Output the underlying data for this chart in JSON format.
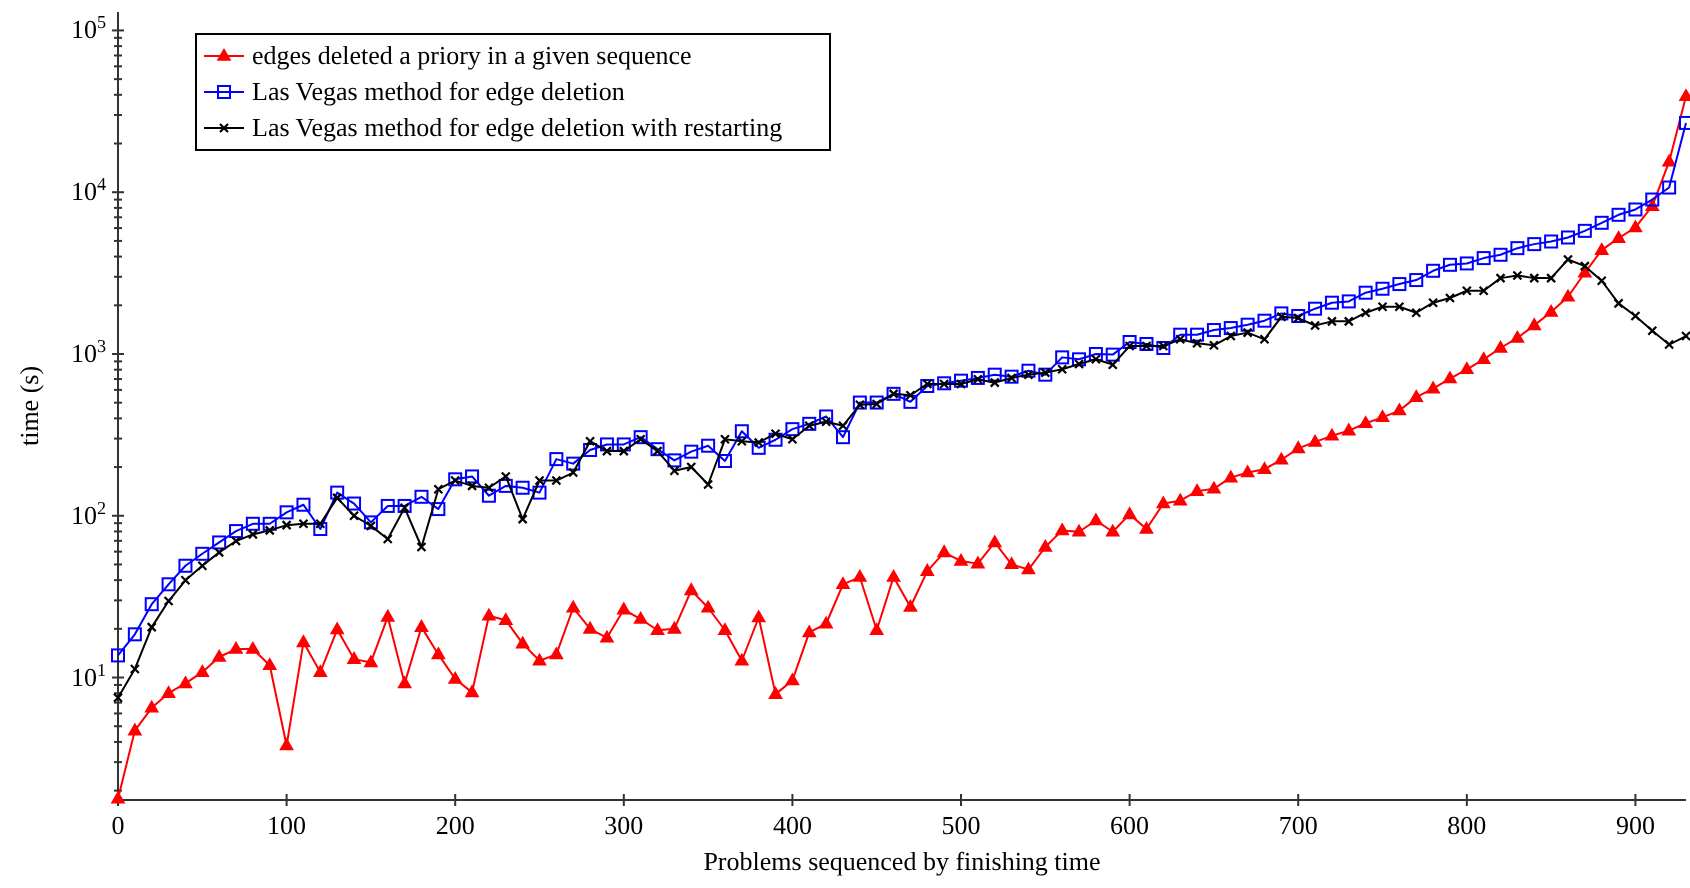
{
  "chart_data": {
    "type": "line",
    "xlabel": "Problems sequenced by finishing time",
    "ylabel": "time (s)",
    "log": "y",
    "grid": false,
    "legend": "top left",
    "xlim": [
      0,
      930
    ],
    "xticks": [
      0,
      100,
      200,
      300,
      400,
      500,
      600,
      700,
      800,
      900
    ],
    "ylim": [
      1.75,
      130000
    ],
    "yticks": [
      {
        "value": 10,
        "label": "10$^{1}$"
      },
      {
        "value": 100,
        "label": "10$^{2}$"
      },
      {
        "value": 1000,
        "label": "10$^{3}$"
      },
      {
        "value": 10000,
        "label": "10$^{4}$"
      },
      {
        "value": 100000,
        "label": "10$^{5}$"
      },
      {
        "value": 2,
        "label": null
      },
      {
        "value": 3,
        "label": null
      },
      {
        "value": 4,
        "label": null
      },
      {
        "value": 5,
        "label": null
      },
      {
        "value": 6,
        "label": null
      },
      {
        "value": 7,
        "label": null
      },
      {
        "value": 8,
        "label": null
      },
      {
        "value": 9,
        "label": null
      },
      {
        "value": 20,
        "label": null
      },
      {
        "value": 30,
        "label": null
      },
      {
        "value": 40,
        "label": null
      },
      {
        "value": 50,
        "label": null
      },
      {
        "value": 60,
        "label": null
      },
      {
        "value": 70,
        "label": null
      },
      {
        "value": 80,
        "label": null
      },
      {
        "value": 90,
        "label": null
      },
      {
        "value": 200,
        "label": null
      },
      {
        "value": 300,
        "label": null
      },
      {
        "value": 400,
        "label": null
      },
      {
        "value": 500,
        "label": null
      },
      {
        "value": 600,
        "label": null
      },
      {
        "value": 700,
        "label": null
      },
      {
        "value": 800,
        "label": null
      },
      {
        "value": 900,
        "label": null
      },
      {
        "value": 2000,
        "label": null
      },
      {
        "value": 3000,
        "label": null
      },
      {
        "value": 4000,
        "label": null
      },
      {
        "value": 5000,
        "label": null
      },
      {
        "value": 6000,
        "label": null
      },
      {
        "value": 7000,
        "label": null
      },
      {
        "value": 8000,
        "label": null
      },
      {
        "value": 9000,
        "label": null
      },
      {
        "value": 20000,
        "label": null
      },
      {
        "value": 30000,
        "label": null
      },
      {
        "value": 40000,
        "label": null
      },
      {
        "value": 50000,
        "label": null
      },
      {
        "value": 60000,
        "label": null
      },
      {
        "value": 70000,
        "label": null
      },
      {
        "value": 80000,
        "label": null
      },
      {
        "value": 90000,
        "label": null
      }
    ],
    "x": [
      0,
      10,
      20,
      30,
      40,
      50,
      60,
      70,
      80,
      90,
      100,
      110,
      120,
      130,
      140,
      150,
      160,
      170,
      180,
      190,
      200,
      210,
      220,
      230,
      240,
      250,
      260,
      270,
      280,
      290,
      300,
      310,
      320,
      330,
      340,
      350,
      360,
      370,
      380,
      390,
      400,
      410,
      420,
      430,
      440,
      450,
      460,
      470,
      480,
      490,
      500,
      510,
      520,
      530,
      540,
      550,
      560,
      570,
      580,
      590,
      600,
      610,
      620,
      630,
      640,
      650,
      660,
      670,
      680,
      690,
      700,
      710,
      720,
      730,
      740,
      750,
      760,
      770,
      780,
      790,
      800,
      810,
      820,
      830,
      840,
      850,
      860,
      870,
      880,
      890,
      900,
      910,
      920,
      930
    ],
    "series": [
      {
        "name": "edges deleted a priory in a given sequence",
        "color": "#ff0000",
        "marker": "triangle",
        "values": [
          1.78,
          4.7,
          6.5,
          8.0,
          9.2,
          10.8,
          13.4,
          15,
          15,
          11.9,
          3.8,
          16.5,
          10.8,
          19.8,
          13,
          12.4,
          23.7,
          9.2,
          20.5,
          13.9,
          9.8,
          8.1,
          24.1,
          22.6,
          16.2,
          12.7,
          13.9,
          27,
          20,
          17.6,
          26.3,
          23,
          19.6,
          20,
          34.6,
          27,
          19.6,
          12.7,
          23.5,
          7.9,
          9.6,
          19,
          21.5,
          37.7,
          41.8,
          19.6,
          41.8,
          27.3,
          45.5,
          59.4,
          52.5,
          50.6,
          68.4,
          50.1,
          46.5,
          64.1,
          81.2,
          79.6,
          93.5,
          79.6,
          102,
          82.8,
          119,
          124,
          142,
          147,
          172,
          185,
          194,
          222,
          261,
          286,
          312,
          336,
          373,
          406,
          447,
          541,
          611,
          705,
          804,
          927,
          1089,
          1256,
          1503,
          1817,
          2259,
          3177,
          4385,
          5200,
          6053,
          8200,
          15450,
          39200
        ]
      },
      {
        "name": "Las Vegas method for edge deletion",
        "color": "#0000ff",
        "marker": "square",
        "values": [
          13.7,
          18.5,
          28.4,
          37.7,
          49.1,
          58.2,
          68.4,
          80.4,
          89.2,
          89.2,
          105,
          117,
          82.8,
          139,
          119,
          91,
          115,
          115,
          131,
          110,
          168,
          175,
          133,
          153,
          149,
          139,
          224,
          210,
          255,
          276,
          276,
          306,
          258,
          220,
          249,
          271,
          218,
          333,
          263,
          295,
          343,
          370,
          411,
          306,
          501,
          501,
          567,
          506,
          634,
          659,
          684,
          711,
          745,
          724,
          788,
          745,
          953,
          927,
          1000,
          991,
          1186,
          1153,
          1089,
          1316,
          1316,
          1406,
          1446,
          1517,
          1606,
          1782,
          1717,
          1905,
          2075,
          2114,
          2392,
          2531,
          2705,
          2864,
          3268,
          3558,
          3628,
          3915,
          4105,
          4510,
          4776,
          4958,
          5250,
          5770,
          6470,
          7250,
          7820,
          9010,
          10690,
          26800
        ]
      },
      {
        "name": "Las Vegas method for edge deletion with restarting",
        "color": "#000000",
        "marker": "cross",
        "values": [
          7.5,
          11.3,
          20.5,
          29.7,
          39.9,
          49.1,
          59.4,
          69.8,
          76.7,
          81.2,
          87.5,
          89.2,
          89.2,
          129,
          100,
          86.6,
          71.8,
          112,
          64.1,
          146,
          165,
          153,
          149,
          175,
          95.3,
          165,
          165,
          185,
          289,
          251,
          251,
          297,
          251,
          190,
          200,
          156,
          297,
          289,
          284,
          321,
          297,
          360,
          381,
          360,
          486,
          491,
          567,
          556,
          653,
          653,
          653,
          698,
          665,
          711,
          745,
          767,
          804,
          867,
          927,
          859,
          1119,
          1119,
          1119,
          1232,
          1164,
          1131,
          1291,
          1355,
          1232,
          1698,
          1667,
          1500,
          1591,
          1591,
          1800,
          1960,
          1960,
          1800,
          2075,
          2218,
          2460,
          2460,
          2944,
          3060,
          2944,
          2944,
          3837,
          3491,
          2837,
          2056,
          1717,
          1393,
          1143,
          1291
        ]
      }
    ]
  }
}
